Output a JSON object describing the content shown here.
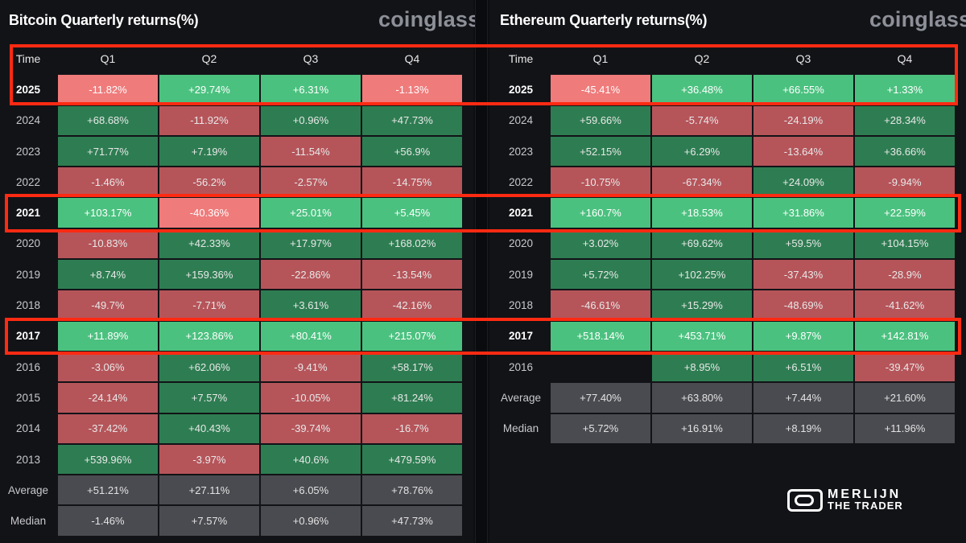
{
  "btc": {
    "title": "Bitcoin Quarterly returns(%)",
    "logo": "coinglass",
    "headers": [
      "Time",
      "Q1",
      "Q2",
      "Q3",
      "Q4"
    ],
    "rows": [
      {
        "label": "2025",
        "values": [
          "-11.82%",
          "+29.74%",
          "+6.31%",
          "-1.13%"
        ]
      },
      {
        "label": "2024",
        "values": [
          "+68.68%",
          "-11.92%",
          "+0.96%",
          "+47.73%"
        ]
      },
      {
        "label": "2023",
        "values": [
          "+71.77%",
          "+7.19%",
          "-11.54%",
          "+56.9%"
        ]
      },
      {
        "label": "2022",
        "values": [
          "-1.46%",
          "-56.2%",
          "-2.57%",
          "-14.75%"
        ]
      },
      {
        "label": "2021",
        "values": [
          "+103.17%",
          "-40.36%",
          "+25.01%",
          "+5.45%"
        ]
      },
      {
        "label": "2020",
        "values": [
          "-10.83%",
          "+42.33%",
          "+17.97%",
          "+168.02%"
        ]
      },
      {
        "label": "2019",
        "values": [
          "+8.74%",
          "+159.36%",
          "-22.86%",
          "-13.54%"
        ]
      },
      {
        "label": "2018",
        "values": [
          "-49.7%",
          "-7.71%",
          "+3.61%",
          "-42.16%"
        ]
      },
      {
        "label": "2017",
        "values": [
          "+11.89%",
          "+123.86%",
          "+80.41%",
          "+215.07%"
        ]
      },
      {
        "label": "2016",
        "values": [
          "-3.06%",
          "+62.06%",
          "-9.41%",
          "+58.17%"
        ]
      },
      {
        "label": "2015",
        "values": [
          "-24.14%",
          "+7.57%",
          "-10.05%",
          "+81.24%"
        ]
      },
      {
        "label": "2014",
        "values": [
          "-37.42%",
          "+40.43%",
          "-39.74%",
          "-16.7%"
        ]
      },
      {
        "label": "2013",
        "values": [
          "+539.96%",
          "-3.97%",
          "+40.6%",
          "+479.59%"
        ]
      },
      {
        "label": "Average",
        "values": [
          "+51.21%",
          "+27.11%",
          "+6.05%",
          "+78.76%"
        ]
      },
      {
        "label": "Median",
        "values": [
          "-1.46%",
          "+7.57%",
          "+0.96%",
          "+47.73%"
        ]
      }
    ]
  },
  "eth": {
    "title": "Ethereum Quarterly returns(%)",
    "logo": "coinglass",
    "headers": [
      "Time",
      "Q1",
      "Q2",
      "Q3",
      "Q4"
    ],
    "rows": [
      {
        "label": "2025",
        "values": [
          "-45.41%",
          "+36.48%",
          "+66.55%",
          "+1.33%"
        ]
      },
      {
        "label": "2024",
        "values": [
          "+59.66%",
          "-5.74%",
          "-24.19%",
          "+28.34%"
        ]
      },
      {
        "label": "2023",
        "values": [
          "+52.15%",
          "+6.29%",
          "-13.64%",
          "+36.66%"
        ]
      },
      {
        "label": "2022",
        "values": [
          "-10.75%",
          "-67.34%",
          "+24.09%",
          "-9.94%"
        ]
      },
      {
        "label": "2021",
        "values": [
          "+160.7%",
          "+18.53%",
          "+31.86%",
          "+22.59%"
        ]
      },
      {
        "label": "2020",
        "values": [
          "+3.02%",
          "+69.62%",
          "+59.5%",
          "+104.15%"
        ]
      },
      {
        "label": "2019",
        "values": [
          "+5.72%",
          "+102.25%",
          "-37.43%",
          "-28.9%"
        ]
      },
      {
        "label": "2018",
        "values": [
          "-46.61%",
          "+15.29%",
          "-48.69%",
          "-41.62%"
        ]
      },
      {
        "label": "2017",
        "values": [
          "+518.14%",
          "+453.71%",
          "+9.87%",
          "+142.81%"
        ]
      },
      {
        "label": "2016",
        "values": [
          "",
          "+8.95%",
          "+6.51%",
          "-39.47%"
        ]
      },
      {
        "label": "Average",
        "values": [
          "+77.40%",
          "+63.80%",
          "+7.44%",
          "+21.60%"
        ]
      },
      {
        "label": "Median",
        "values": [
          "+5.72%",
          "+16.91%",
          "+8.19%",
          "+11.96%"
        ]
      }
    ]
  },
  "highlighted_rows": [
    "2025",
    "2021",
    "2017"
  ],
  "bright_rows": [
    "2025",
    "2021",
    "2017"
  ],
  "colors": {
    "positive": "#2e7d52",
    "negative": "#b5555a",
    "positive_bright": "#4bc17f",
    "negative_bright": "#ef7b7b",
    "summary": "#4a4b50",
    "highlight_border": "#ff2a12"
  },
  "watermark": {
    "line1": "MERLIJN",
    "line2": "THE TRADER",
    "icon": "merlijn-logo-icon"
  }
}
